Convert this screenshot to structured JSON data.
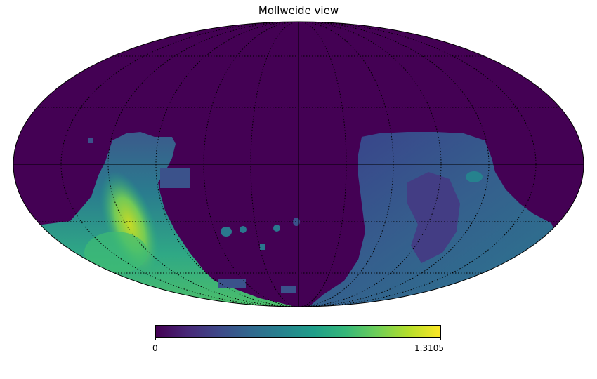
{
  "title": "Mollweide view",
  "colorbar": {
    "min_label": "0",
    "max_label": "1.3105",
    "min": 0,
    "max": 1.3105,
    "colormap": "viridis",
    "stops": [
      "#440154",
      "#482878",
      "#3e4989",
      "#31688e",
      "#26828e",
      "#1f9e89",
      "#35b779",
      "#6ece58",
      "#b5de2b",
      "#fde725"
    ]
  },
  "map": {
    "projection": "mollweide",
    "background_value_color": "#440154",
    "graticule": "dotted",
    "regions": [
      {
        "name": "left-footprint",
        "intensity": "medium-high"
      },
      {
        "name": "right-footprint",
        "intensity": "low-medium"
      }
    ]
  }
}
